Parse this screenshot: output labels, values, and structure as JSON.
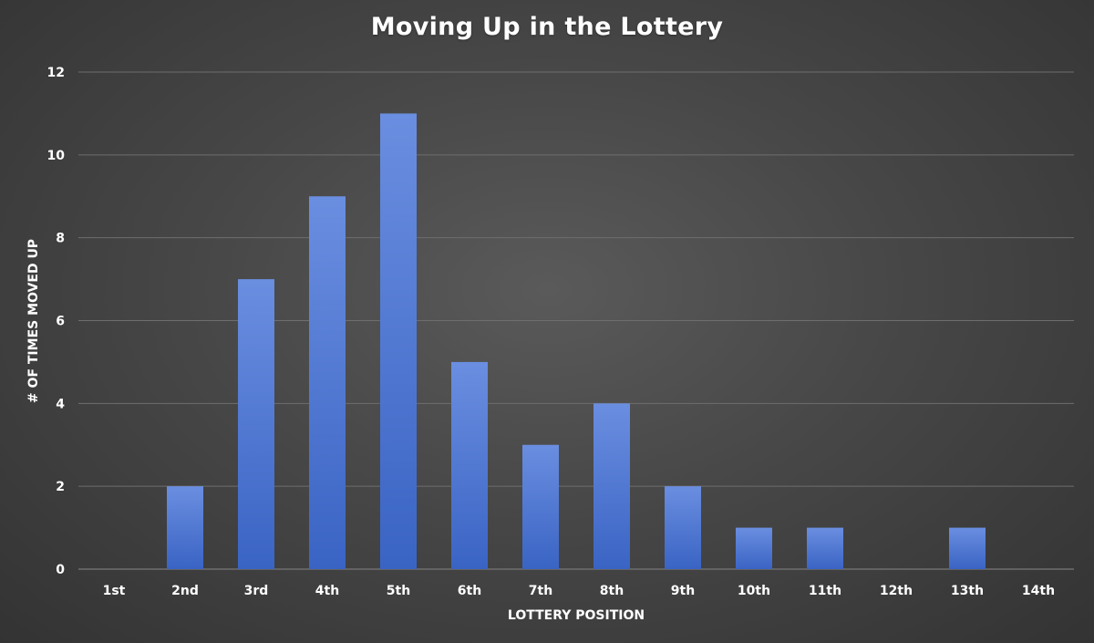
{
  "chart_data": {
    "type": "bar",
    "title": "Moving Up in the Lottery",
    "xlabel": "LOTTERY POSITION",
    "ylabel": "# OF TIMES MOVED UP",
    "categories": [
      "1st",
      "2nd",
      "3rd",
      "4th",
      "5th",
      "6th",
      "7th",
      "8th",
      "9th",
      "10th",
      "11th",
      "12th",
      "13th",
      "14th"
    ],
    "values": [
      0,
      2,
      7,
      9,
      11,
      5,
      3,
      4,
      2,
      1,
      1,
      0,
      1,
      0
    ],
    "ylim": [
      0,
      12
    ],
    "yticks": [
      0,
      2,
      4,
      6,
      8,
      10,
      12
    ],
    "grid": true,
    "legend": "none"
  },
  "colors": {
    "bar_top": "#6a8ee0",
    "bar_bottom": "#3a64c4",
    "grid": "#6e6e6e",
    "text": "#ffffff"
  }
}
